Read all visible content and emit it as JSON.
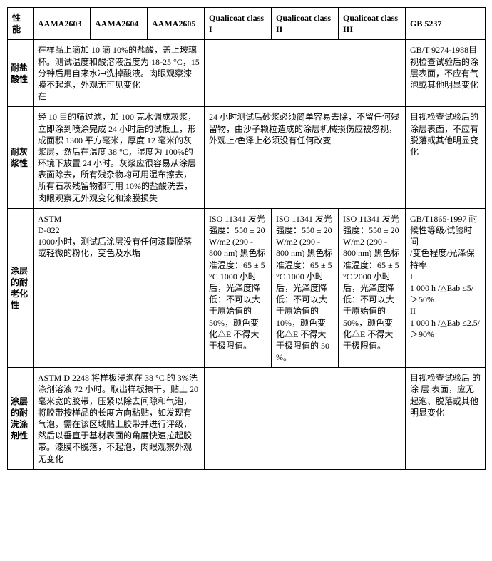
{
  "header": {
    "prop": "性能",
    "aama2603": "AAMA2603",
    "aama2604": "AAMA2604",
    "aama2605": "AAMA2605",
    "q1": "Qualicoat class I",
    "q2": "Qualicoat class II",
    "q3": "Qualicoat class III",
    "gb": "GB 5237"
  },
  "rows": [
    {
      "prop": "耐盐酸性",
      "aama_span": "在样品上滴加 10 滴 10%的盐酸，盖上玻璃杯。测试温度和酸溶液温度为 18-25 °C，15 分钟后用自来水冲洗掉酸液。肉眼观察漆膜不起泡，外观无可见变化\n在",
      "qual_span": "",
      "gb": "GB/T 9274-1988目视检查试验后的涂层表面，不应有气泡或其他明显变化"
    },
    {
      "prop": "耐灰浆性",
      "aama_span": "经 10 目的筛过滤，加 100 克水调成灰浆，立即涂到喷涂完成 24 小时后的试板上，形成面积 1300 平方毫米，厚度 12 毫米的灰浆层，然后在温度 38 °C，湿度为 100%的环境下放置 24 小时。灰浆应很容易从涂层表面除去，所有残杂物均可用湿布擦去，所有石灰残留物都可用 10%的盐酸洗去，肉眼观察无外观变化和漆膜损失",
      "qual_span": "24 小时测试后砂浆必须简单容易去除，不留任何残留物，由沙子颗粒造成的涂层机械损伤应被忽视，外观上/色泽上必须没有任何改变",
      "gb": "目视检查试验后的涂层表面，不应有脱落或其他明显变化"
    },
    {
      "prop": "涂层的耐老化性",
      "aama_span": "ASTM\nD-822\n1000小时，测试后涂层没有任何漆膜脱落或轻微的粉化，变色及水垢",
      "q1": "ISO 11341 发光强度：550 ± 20 W/m2 (290 - 800 nm) 黑色标准温度：65 ± 5 °C 1000 小时后，光泽度降低：不可以大于原始值的 50%，颜色变化△E 不得大于极限值。",
      "q2": "ISO 11341 发光强度：550 ± 20 W/m2 (290 - 800 nm) 黑色标准温度：65 ± 5 °C 1000 小时后，光泽度降低：不可以大于原始值的 10%，颜色变化△E 不得大于极限值的 50 %。",
      "q3": "ISO 11341 发光强度：550 ± 20 W/m2 (290 - 800 nm) 黑色标准温度：65 ± 5 °C 2000 小时后，光泽度降低：不可以大于原始值的 50%，颜色变化△E 不得大于极限值。",
      "gb": "GB/T1865-1997 耐候性等级/试验时间\n/变色程度/光泽保持率\n     I\n1 000 h /△Eab ≤5/      ＞50%\n     II\n1 000 h /△Eab ≤2.5/     ＞90%"
    },
    {
      "prop": "涂层的耐洗涤剂性",
      "aama_span": "ASTM D 2248 将样板浸泡在 38 °C 的 3%洗涤剂溶液 72 小时。取出样板擦干，贴上 20 毫米宽的胶带，压紧以除去间隙和气泡，将胶带按样品的长度方向粘贴，如发现有气泡，需在该区域贴上胶带并进行评级，然后以垂直于基材表面的角度快速拉起胶带。漆膜不脱落，不起泡，肉眼观察外观无变化",
      "qual_span": "",
      "gb": "目视检查试验后 的 涂 层 表面，应无起泡、脱落或其他明显变化"
    }
  ]
}
